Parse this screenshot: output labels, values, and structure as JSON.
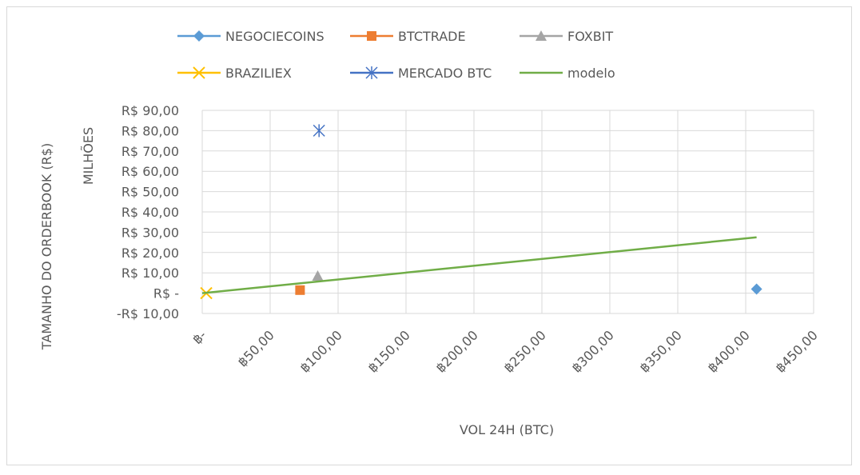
{
  "chart_data": {
    "type": "scatter",
    "x_label": "VOL 24H (BTC)",
    "y_label": "TAMANHO DO ORDERBOOK (R$)",
    "y_unit_label": "MILHÕES",
    "xlim": [
      0,
      450
    ],
    "ylim": [
      -10,
      90
    ],
    "x_ticks": [
      0,
      50,
      100,
      150,
      200,
      250,
      300,
      350,
      400,
      450
    ],
    "x_tick_labels": [
      "฿-",
      "฿50,00",
      "฿100,00",
      "฿150,00",
      "฿200,00",
      "฿250,00",
      "฿300,00",
      "฿350,00",
      "฿400,00",
      "฿450,00"
    ],
    "y_ticks": [
      -10,
      0,
      10,
      20,
      30,
      40,
      50,
      60,
      70,
      80,
      90
    ],
    "y_tick_labels": [
      "-R$ 10,00",
      "R$ -",
      "R$ 10,00",
      "R$ 20,00",
      "R$ 30,00",
      "R$ 40,00",
      "R$ 50,00",
      "R$ 60,00",
      "R$ 70,00",
      "R$ 80,00",
      "R$ 90,00"
    ],
    "grid": true,
    "legend_position": "top",
    "series": [
      {
        "name": "NEGOCIECOINS",
        "marker": "diamond",
        "color": "#5b9bd5",
        "points": [
          [
            408,
            2
          ]
        ]
      },
      {
        "name": "BTCTRADE",
        "marker": "square",
        "color": "#ed7d31",
        "points": [
          [
            72,
            1.5
          ]
        ]
      },
      {
        "name": "FOXBIT",
        "marker": "triangle",
        "color": "#a5a5a5",
        "points": [
          [
            85,
            8.5
          ]
        ]
      },
      {
        "name": "BRAZILIEX",
        "marker": "x",
        "color": "#ffc000",
        "points": [
          [
            3,
            0
          ]
        ]
      },
      {
        "name": "MERCADO BTC",
        "marker": "star",
        "color": "#4472c4",
        "points": [
          [
            86,
            80
          ]
        ]
      },
      {
        "name": "modelo",
        "marker": "line",
        "color": "#70ad47",
        "points": [
          [
            0,
            0
          ],
          [
            408,
            27.5
          ]
        ]
      }
    ]
  }
}
